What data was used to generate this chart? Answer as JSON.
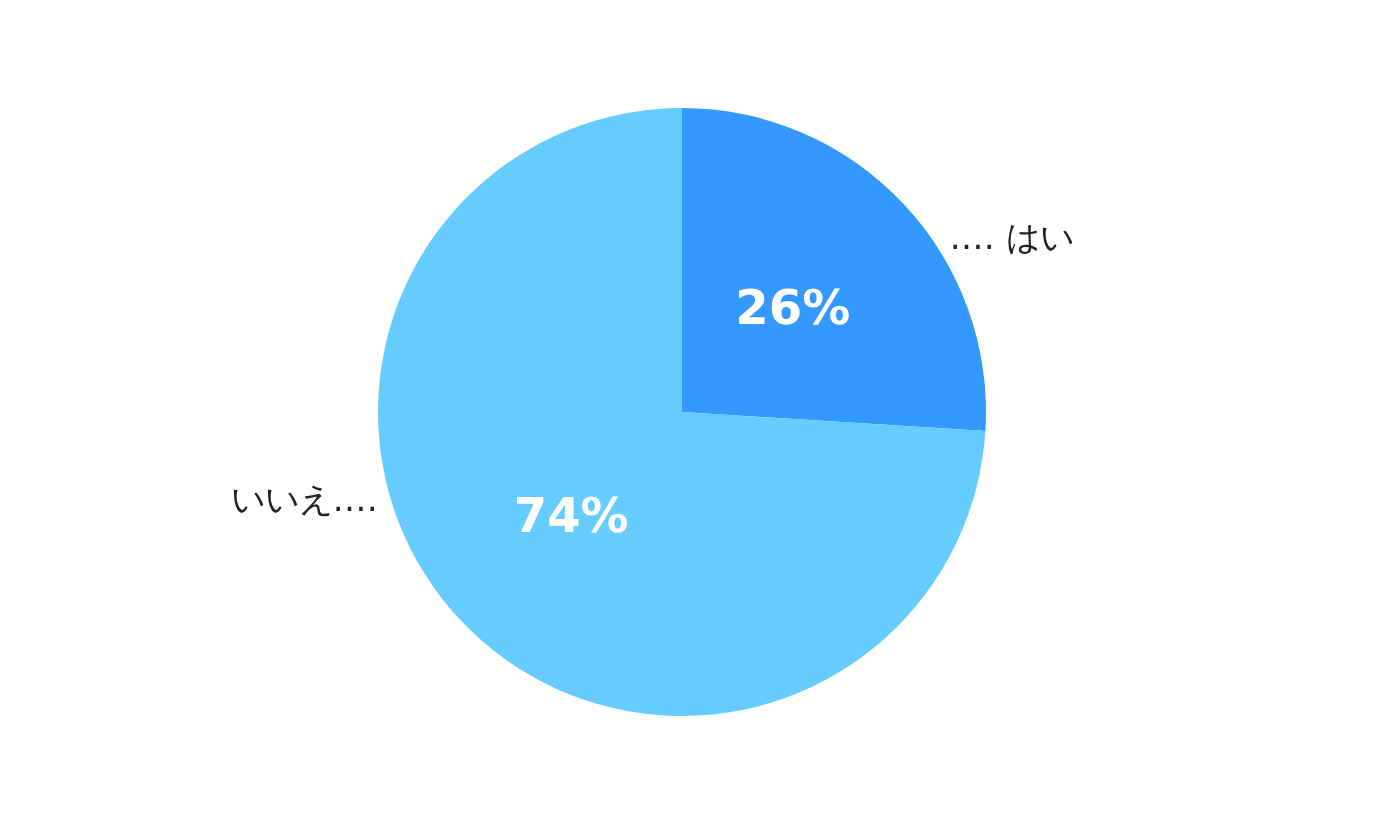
{
  "chart_data": {
    "type": "pie",
    "categories": [
      "‥‥ はい",
      "いいえ‥‥"
    ],
    "values": [
      26,
      74
    ],
    "colors": [
      "#3399ff",
      "#66ccff"
    ],
    "value_labels": [
      "26%",
      "74%"
    ]
  }
}
